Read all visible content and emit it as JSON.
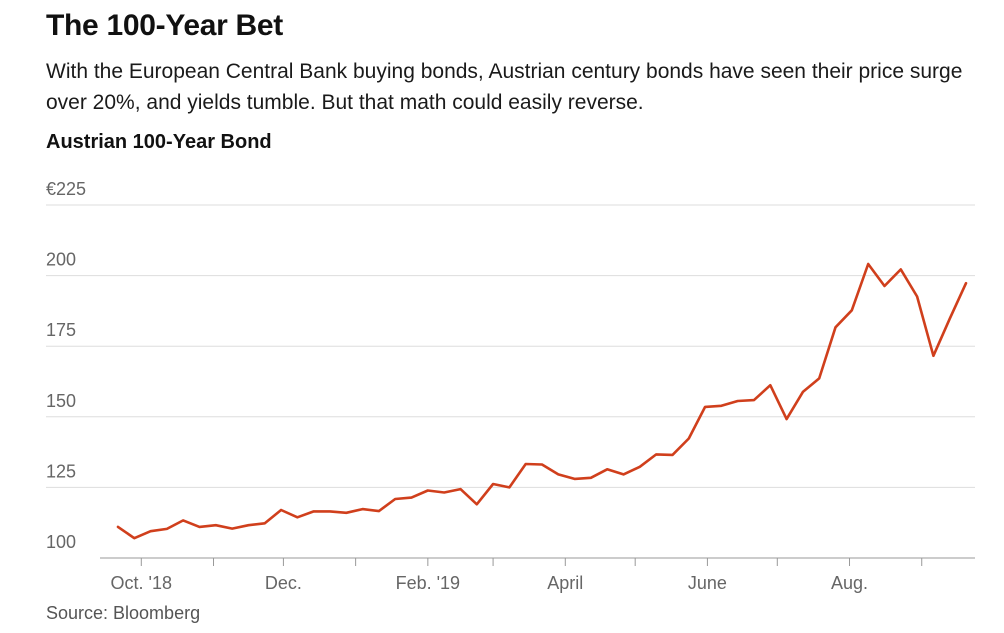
{
  "header": {
    "title": "The 100-Year Bet",
    "subtitle": "With the European Central Bank buying bonds, Austrian century bonds have seen their price surge over 20%, and yields tumble. But that math could easily reverse."
  },
  "source": "Source: Bloomberg",
  "colors": {
    "line": "#d03f1c",
    "grid": "#dddddd",
    "axis": "#999999",
    "tick_text": "#666666"
  },
  "chart_data": {
    "type": "line",
    "title": "Austrian 100-Year Bond",
    "xlabel": "",
    "ylabel": "",
    "ylim": [
      100,
      225
    ],
    "yticks": [
      {
        "value": 225,
        "label": "€225"
      },
      {
        "value": 200,
        "label": "200"
      },
      {
        "value": 175,
        "label": "175"
      },
      {
        "value": 150,
        "label": "150"
      },
      {
        "value": 125,
        "label": "125"
      },
      {
        "value": 100,
        "label": "100"
      }
    ],
    "xlim": [
      "2018-09-21",
      "2019-09-20"
    ],
    "xticks": [
      {
        "date": "2018-10-01",
        "label": "Oct. '18"
      },
      {
        "date": "2018-12-01",
        "label": "Dec."
      },
      {
        "date": "2019-02-01",
        "label": "Feb. '19"
      },
      {
        "date": "2019-04-01",
        "label": "April"
      },
      {
        "date": "2019-06-01",
        "label": "June"
      },
      {
        "date": "2019-08-01",
        "label": "Aug."
      }
    ],
    "minor_ticks": [
      "2018-11-01",
      "2019-01-01",
      "2019-03-01",
      "2019-05-01",
      "2019-07-01",
      "2019-09-01"
    ],
    "grid": true,
    "series": [
      {
        "name": "",
        "points": [
          [
            "2018-09-21",
            111.0
          ],
          [
            "2018-09-28",
            107.0
          ],
          [
            "2018-10-05",
            109.5
          ],
          [
            "2018-10-12",
            110.3
          ],
          [
            "2018-10-19",
            113.3
          ],
          [
            "2018-10-26",
            111.0
          ],
          [
            "2018-11-02",
            111.6
          ],
          [
            "2018-11-09",
            110.4
          ],
          [
            "2018-11-16",
            111.6
          ],
          [
            "2018-11-23",
            112.3
          ],
          [
            "2018-11-30",
            117.0
          ],
          [
            "2018-12-07",
            114.4
          ],
          [
            "2018-12-14",
            116.5
          ],
          [
            "2018-12-21",
            116.5
          ],
          [
            "2018-12-28",
            116.0
          ],
          [
            "2019-01-04",
            117.3
          ],
          [
            "2019-01-11",
            116.6
          ],
          [
            "2019-01-18",
            120.9
          ],
          [
            "2019-01-25",
            121.4
          ],
          [
            "2019-02-01",
            123.9
          ],
          [
            "2019-02-08",
            123.2
          ],
          [
            "2019-02-15",
            124.4
          ],
          [
            "2019-02-22",
            119.0
          ],
          [
            "2019-03-01",
            126.2
          ],
          [
            "2019-03-08",
            125.0
          ],
          [
            "2019-03-15",
            133.3
          ],
          [
            "2019-03-22",
            133.1
          ],
          [
            "2019-03-29",
            129.6
          ],
          [
            "2019-04-05",
            128.0
          ],
          [
            "2019-04-12",
            128.4
          ],
          [
            "2019-04-19",
            131.4
          ],
          [
            "2019-04-26",
            129.6
          ],
          [
            "2019-05-03",
            132.3
          ],
          [
            "2019-05-10",
            136.7
          ],
          [
            "2019-05-17",
            136.5
          ],
          [
            "2019-05-24",
            142.3
          ],
          [
            "2019-05-31",
            153.5
          ],
          [
            "2019-06-07",
            153.9
          ],
          [
            "2019-06-14",
            155.6
          ],
          [
            "2019-06-21",
            155.9
          ],
          [
            "2019-06-28",
            161.2
          ],
          [
            "2019-07-05",
            149.2
          ],
          [
            "2019-07-12",
            158.8
          ],
          [
            "2019-07-19",
            163.6
          ],
          [
            "2019-07-26",
            181.7
          ],
          [
            "2019-08-02",
            187.7
          ],
          [
            "2019-08-09",
            204.1
          ],
          [
            "2019-08-16",
            196.3
          ],
          [
            "2019-08-23",
            202.2
          ],
          [
            "2019-08-30",
            192.6
          ],
          [
            "2019-09-06",
            171.6
          ],
          [
            "2019-09-13",
            184.7
          ],
          [
            "2019-09-20",
            197.3
          ]
        ]
      }
    ]
  }
}
